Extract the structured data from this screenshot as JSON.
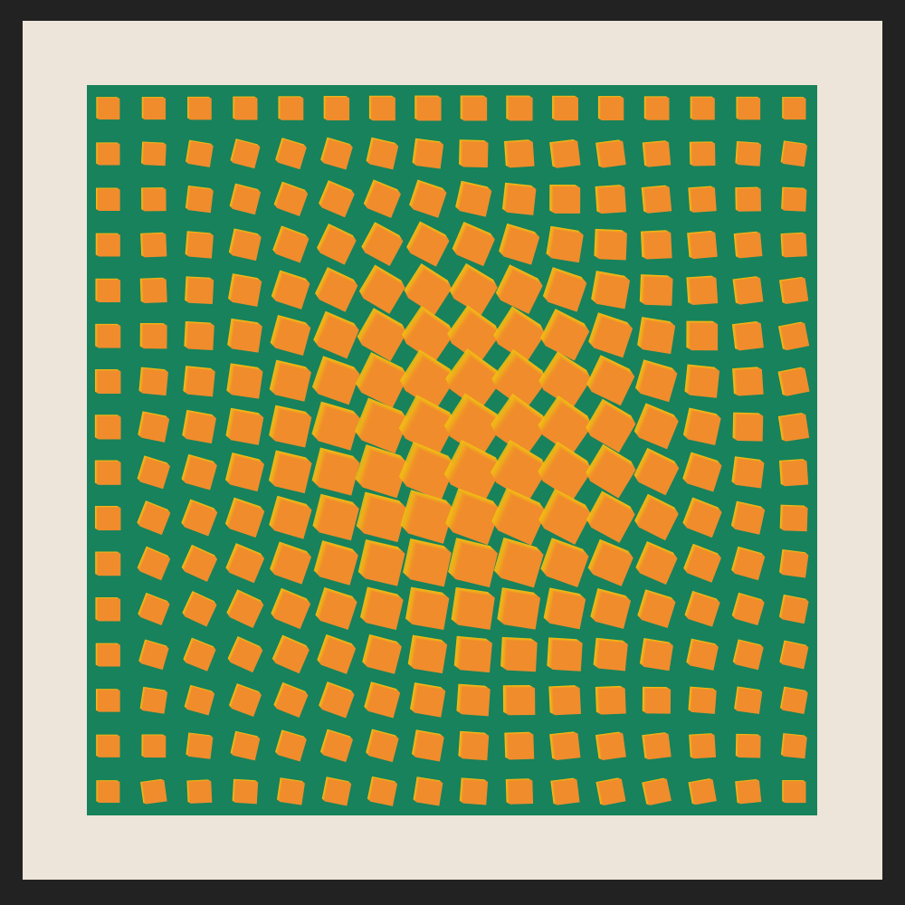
{
  "artwork": {
    "border_color": "#222222",
    "mat_color": "#ede5da",
    "panel_color": "#17825b",
    "square_start_color": "#f2cc0c",
    "square_end_color": "#f08c2c",
    "columns": 16,
    "rows": 16
  }
}
